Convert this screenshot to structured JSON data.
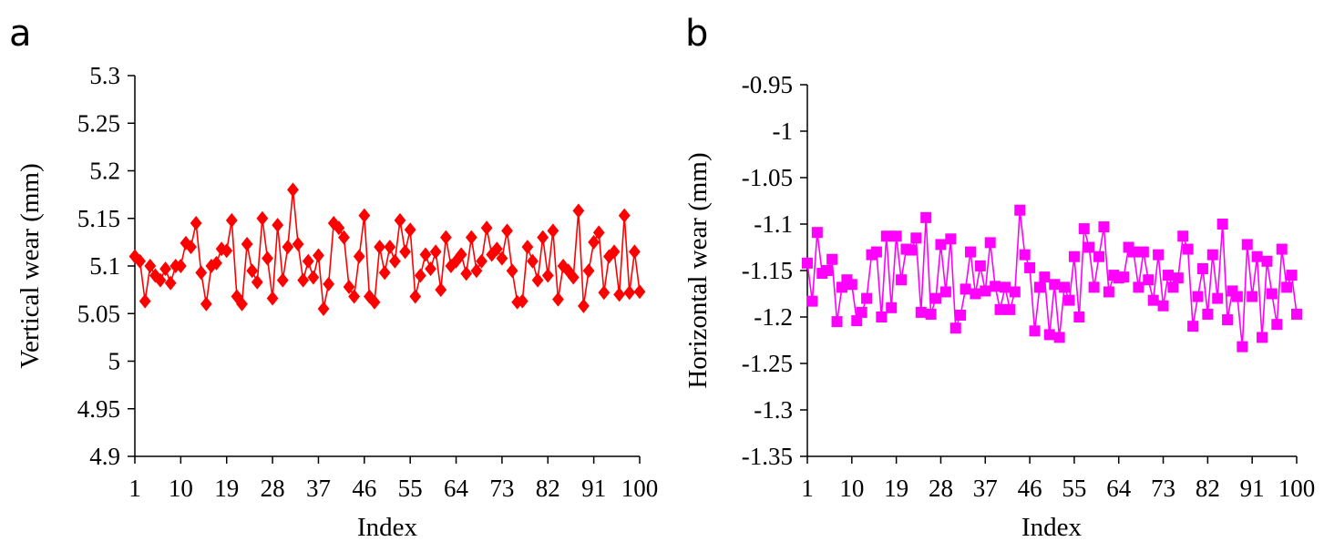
{
  "chart_data": [
    {
      "type": "line",
      "panel_label": "a",
      "title": "",
      "xlabel": "Index",
      "ylabel": "Vertical wear (mm)",
      "xlim": [
        1,
        100
      ],
      "ylim": [
        4.9,
        5.3
      ],
      "yticks": [
        {
          "value": 5.3,
          "label": "5.3"
        },
        {
          "value": 5.25,
          "label": "5.25"
        },
        {
          "value": 5.2,
          "label": "5.2"
        },
        {
          "value": 5.15,
          "label": "5.15"
        },
        {
          "value": 5.1,
          "label": "5.1"
        },
        {
          "value": 5.05,
          "label": "5.05"
        },
        {
          "value": 5.0,
          "label": "5"
        },
        {
          "value": 4.95,
          "label": "4.95"
        },
        {
          "value": 4.9,
          "label": "4.9"
        }
      ],
      "xticks": [
        {
          "value": 1,
          "label": "1"
        },
        {
          "value": 10,
          "label": "10"
        },
        {
          "value": 19,
          "label": "19"
        },
        {
          "value": 28,
          "label": "28"
        },
        {
          "value": 37,
          "label": "37"
        },
        {
          "value": 46,
          "label": "46"
        },
        {
          "value": 55,
          "label": "55"
        },
        {
          "value": 64,
          "label": "64"
        },
        {
          "value": 73,
          "label": "73"
        },
        {
          "value": 82,
          "label": "82"
        },
        {
          "value": 91,
          "label": "91"
        },
        {
          "value": 100,
          "label": "100"
        }
      ],
      "series": [
        {
          "name": "Vertical wear",
          "color": "#ff0000",
          "marker": "diamond",
          "x": [
            1,
            2,
            3,
            4,
            5,
            6,
            7,
            8,
            9,
            10,
            11,
            12,
            13,
            14,
            15,
            16,
            17,
            18,
            19,
            20,
            21,
            22,
            23,
            24,
            25,
            26,
            27,
            28,
            29,
            30,
            31,
            32,
            33,
            34,
            35,
            36,
            37,
            38,
            39,
            40,
            41,
            42,
            43,
            44,
            45,
            46,
            47,
            48,
            49,
            50,
            51,
            52,
            53,
            54,
            55,
            56,
            57,
            58,
            59,
            60,
            61,
            62,
            63,
            64,
            65,
            66,
            67,
            68,
            69,
            70,
            71,
            72,
            73,
            74,
            75,
            76,
            77,
            78,
            79,
            80,
            81,
            82,
            83,
            84,
            85,
            86,
            87,
            88,
            89,
            90,
            91,
            92,
            93,
            94,
            95,
            96,
            97,
            98,
            99,
            100
          ],
          "values": [
            5.11,
            5.105,
            5.063,
            5.1,
            5.09,
            5.085,
            5.097,
            5.082,
            5.1,
            5.1,
            5.124,
            5.12,
            5.145,
            5.093,
            5.06,
            5.1,
            5.103,
            5.118,
            5.116,
            5.148,
            5.068,
            5.06,
            5.123,
            5.095,
            5.083,
            5.15,
            5.108,
            5.066,
            5.143,
            5.085,
            5.12,
            5.18,
            5.123,
            5.085,
            5.105,
            5.088,
            5.111,
            5.055,
            5.081,
            5.145,
            5.14,
            5.13,
            5.078,
            5.068,
            5.11,
            5.153,
            5.068,
            5.062,
            5.12,
            5.093,
            5.12,
            5.105,
            5.148,
            5.115,
            5.138,
            5.068,
            5.09,
            5.112,
            5.097,
            5.115,
            5.075,
            5.13,
            5.1,
            5.105,
            5.112,
            5.092,
            5.13,
            5.095,
            5.105,
            5.14,
            5.112,
            5.118,
            5.108,
            5.137,
            5.095,
            5.062,
            5.063,
            5.12,
            5.105,
            5.085,
            5.13,
            5.09,
            5.137,
            5.065,
            5.1,
            5.095,
            5.088,
            5.158,
            5.058,
            5.095,
            5.125,
            5.135,
            5.072,
            5.11,
            5.115,
            5.07,
            5.153,
            5.072,
            5.115,
            5.073
          ]
        }
      ]
    },
    {
      "type": "line",
      "panel_label": "b",
      "title": "",
      "xlabel": "Index",
      "ylabel": "Horizontal wear (mm)",
      "xlim": [
        1,
        100
      ],
      "ylim": [
        -1.35,
        -0.95
      ],
      "yticks": [
        {
          "value": -0.95,
          "label": "-0.95"
        },
        {
          "value": -1.0,
          "label": "-1"
        },
        {
          "value": -1.05,
          "label": "-1.05"
        },
        {
          "value": -1.1,
          "label": "-1.1"
        },
        {
          "value": -1.15,
          "label": "-1.15"
        },
        {
          "value": -1.2,
          "label": "-1.2"
        },
        {
          "value": -1.25,
          "label": "-1.25"
        },
        {
          "value": -1.3,
          "label": "-1.3"
        },
        {
          "value": -1.35,
          "label": "-1.35"
        }
      ],
      "xticks": [
        {
          "value": 1,
          "label": "1"
        },
        {
          "value": 10,
          "label": "10"
        },
        {
          "value": 19,
          "label": "19"
        },
        {
          "value": 28,
          "label": "28"
        },
        {
          "value": 37,
          "label": "37"
        },
        {
          "value": 46,
          "label": "46"
        },
        {
          "value": 55,
          "label": "55"
        },
        {
          "value": 64,
          "label": "64"
        },
        {
          "value": 73,
          "label": "73"
        },
        {
          "value": 82,
          "label": "82"
        },
        {
          "value": 91,
          "label": "91"
        },
        {
          "value": 100,
          "label": "100"
        }
      ],
      "series": [
        {
          "name": "Horizontal wear",
          "color": "#ff00ff",
          "marker": "square",
          "x": [
            1,
            2,
            3,
            4,
            5,
            6,
            7,
            8,
            9,
            10,
            11,
            12,
            13,
            14,
            15,
            16,
            17,
            18,
            19,
            20,
            21,
            22,
            23,
            24,
            25,
            26,
            27,
            28,
            29,
            30,
            31,
            32,
            33,
            34,
            35,
            36,
            37,
            38,
            39,
            40,
            41,
            42,
            43,
            44,
            45,
            46,
            47,
            48,
            49,
            50,
            51,
            52,
            53,
            54,
            55,
            56,
            57,
            58,
            59,
            60,
            61,
            62,
            63,
            64,
            65,
            66,
            67,
            68,
            69,
            70,
            71,
            72,
            73,
            74,
            75,
            76,
            77,
            78,
            79,
            80,
            81,
            82,
            83,
            84,
            85,
            86,
            87,
            88,
            89,
            90,
            91,
            92,
            93,
            94,
            95,
            96,
            97,
            98,
            99,
            100
          ],
          "values": [
            -1.142,
            -1.183,
            -1.109,
            -1.153,
            -1.15,
            -1.138,
            -1.205,
            -1.168,
            -1.16,
            -1.165,
            -1.204,
            -1.195,
            -1.18,
            -1.133,
            -1.13,
            -1.2,
            -1.113,
            -1.19,
            -1.113,
            -1.16,
            -1.127,
            -1.128,
            -1.115,
            -1.195,
            -1.093,
            -1.197,
            -1.18,
            -1.122,
            -1.173,
            -1.116,
            -1.212,
            -1.198,
            -1.17,
            -1.13,
            -1.175,
            -1.145,
            -1.172,
            -1.12,
            -1.167,
            -1.192,
            -1.168,
            -1.192,
            -1.173,
            -1.085,
            -1.133,
            -1.147,
            -1.215,
            -1.168,
            -1.157,
            -1.219,
            -1.165,
            -1.222,
            -1.168,
            -1.182,
            -1.135,
            -1.2,
            -1.105,
            -1.125,
            -1.168,
            -1.135,
            -1.103,
            -1.173,
            -1.155,
            -1.158,
            -1.157,
            -1.125,
            -1.13,
            -1.168,
            -1.13,
            -1.16,
            -1.182,
            -1.133,
            -1.188,
            -1.155,
            -1.168,
            -1.158,
            -1.113,
            -1.127,
            -1.21,
            -1.178,
            -1.148,
            -1.197,
            -1.133,
            -1.18,
            -1.1,
            -1.203,
            -1.172,
            -1.178,
            -1.232,
            -1.122,
            -1.178,
            -1.135,
            -1.222,
            -1.14,
            -1.175,
            -1.208,
            -1.127,
            -1.168,
            -1.155,
            -1.197
          ]
        }
      ]
    }
  ]
}
